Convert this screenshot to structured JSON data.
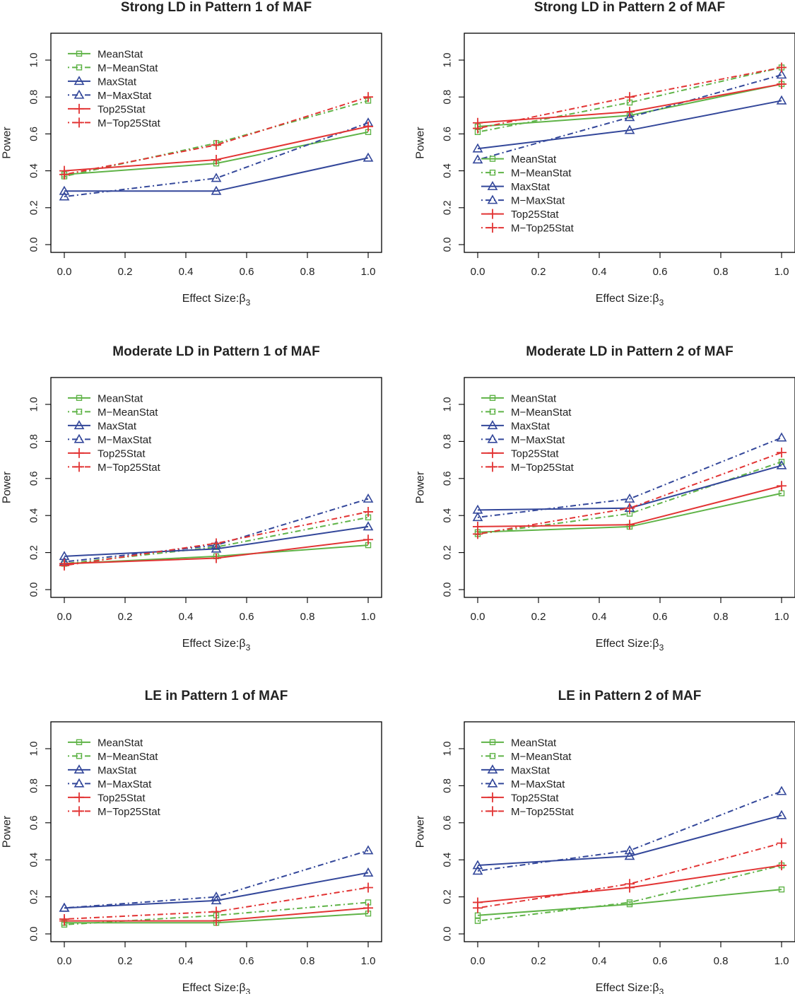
{
  "chart_data": [
    {
      "type": "line",
      "title": "Strong LD in Pattern 1 of MAF",
      "xlabel": "Effect Size:",
      "xlabel_symbol": "β",
      "xlabel_subscript": "3",
      "ylabel": "Power",
      "xlim": [
        0,
        1
      ],
      "ylim": [
        0,
        1
      ],
      "x_ticks": [
        "0.0",
        "0.2",
        "0.4",
        "0.6",
        "0.8",
        "1.0"
      ],
      "y_ticks": [
        "0.0",
        "0.2",
        "0.4",
        "0.6",
        "0.8",
        "1.0"
      ],
      "legend_position": "top-left",
      "x": [
        0,
        0.5,
        1
      ],
      "series": [
        {
          "name": "MeanStat",
          "values": [
            0.38,
            0.44,
            0.61
          ]
        },
        {
          "name": "M−MeanStat",
          "values": [
            0.37,
            0.55,
            0.78
          ]
        },
        {
          "name": "MaxStat",
          "values": [
            0.29,
            0.29,
            0.47
          ]
        },
        {
          "name": "M−MaxStat",
          "values": [
            0.26,
            0.36,
            0.66
          ]
        },
        {
          "name": "Top25Stat",
          "values": [
            0.4,
            0.46,
            0.64
          ]
        },
        {
          "name": "M−Top25Stat",
          "values": [
            0.38,
            0.54,
            0.8
          ]
        }
      ]
    },
    {
      "type": "line",
      "title": "Strong LD in Pattern 2 of MAF",
      "xlabel": "Effect Size:",
      "xlabel_symbol": "β",
      "xlabel_subscript": "3",
      "ylabel": "Power",
      "xlim": [
        0,
        1
      ],
      "ylim": [
        0,
        1
      ],
      "x_ticks": [
        "0.0",
        "0.2",
        "0.4",
        "0.6",
        "0.8",
        "1.0"
      ],
      "y_ticks": [
        "0.0",
        "0.2",
        "0.4",
        "0.6",
        "0.8",
        "1.0"
      ],
      "legend_position": "bottom-left",
      "x": [
        0,
        0.5,
        1
      ],
      "series": [
        {
          "name": "MeanStat",
          "values": [
            0.64,
            0.7,
            0.87
          ]
        },
        {
          "name": "M−MeanStat",
          "values": [
            0.61,
            0.77,
            0.96
          ]
        },
        {
          "name": "MaxStat",
          "values": [
            0.52,
            0.62,
            0.78
          ]
        },
        {
          "name": "M−MaxStat",
          "values": [
            0.46,
            0.69,
            0.92
          ]
        },
        {
          "name": "Top25Stat",
          "values": [
            0.66,
            0.72,
            0.87
          ]
        },
        {
          "name": "M−Top25Stat",
          "values": [
            0.63,
            0.8,
            0.96
          ]
        }
      ]
    },
    {
      "type": "line",
      "title": "Moderate LD in Pattern 1 of MAF",
      "xlabel": "Effect Size:",
      "xlabel_symbol": "β",
      "xlabel_subscript": "3",
      "ylabel": "Power",
      "xlim": [
        0,
        1
      ],
      "ylim": [
        0,
        1
      ],
      "x_ticks": [
        "0.0",
        "0.2",
        "0.4",
        "0.6",
        "0.8",
        "1.0"
      ],
      "y_ticks": [
        "0.0",
        "0.2",
        "0.4",
        "0.6",
        "0.8",
        "1.0"
      ],
      "legend_position": "top-left",
      "x": [
        0,
        0.5,
        1
      ],
      "series": [
        {
          "name": "MeanStat",
          "values": [
            0.14,
            0.18,
            0.24
          ]
        },
        {
          "name": "M−MeanStat",
          "values": [
            0.14,
            0.23,
            0.39
          ]
        },
        {
          "name": "MaxStat",
          "values": [
            0.18,
            0.22,
            0.34
          ]
        },
        {
          "name": "M−MaxStat",
          "values": [
            0.15,
            0.24,
            0.49
          ]
        },
        {
          "name": "Top25Stat",
          "values": [
            0.14,
            0.17,
            0.27
          ]
        },
        {
          "name": "M−Top25Stat",
          "values": [
            0.13,
            0.25,
            0.42
          ]
        }
      ]
    },
    {
      "type": "line",
      "title": "Moderate LD in Pattern 2 of MAF",
      "xlabel": "Effect Size:",
      "xlabel_symbol": "β",
      "xlabel_subscript": "3",
      "ylabel": "Power",
      "xlim": [
        0,
        1
      ],
      "ylim": [
        0,
        1
      ],
      "x_ticks": [
        "0.0",
        "0.2",
        "0.4",
        "0.6",
        "0.8",
        "1.0"
      ],
      "y_ticks": [
        "0.0",
        "0.2",
        "0.4",
        "0.6",
        "0.8",
        "1.0"
      ],
      "legend_position": "top-left",
      "x": [
        0,
        0.5,
        1
      ],
      "series": [
        {
          "name": "MeanStat",
          "values": [
            0.31,
            0.34,
            0.52
          ]
        },
        {
          "name": "M−MeanStat",
          "values": [
            0.3,
            0.41,
            0.69
          ]
        },
        {
          "name": "MaxStat",
          "values": [
            0.43,
            0.44,
            0.67
          ]
        },
        {
          "name": "M−MaxStat",
          "values": [
            0.39,
            0.49,
            0.82
          ]
        },
        {
          "name": "Top25Stat",
          "values": [
            0.34,
            0.35,
            0.56
          ]
        },
        {
          "name": "M−Top25Stat",
          "values": [
            0.3,
            0.44,
            0.74
          ]
        }
      ]
    },
    {
      "type": "line",
      "title": "LE in Pattern 1 of MAF",
      "xlabel": "Effect Size:",
      "xlabel_symbol": "β",
      "xlabel_subscript": "3",
      "ylabel": "Power",
      "xlim": [
        0,
        1
      ],
      "ylim": [
        0,
        1
      ],
      "x_ticks": [
        "0.0",
        "0.2",
        "0.4",
        "0.6",
        "0.8",
        "1.0"
      ],
      "y_ticks": [
        "0.0",
        "0.2",
        "0.4",
        "0.6",
        "0.8",
        "1.0"
      ],
      "legend_position": "top-left",
      "x": [
        0,
        0.5,
        1
      ],
      "series": [
        {
          "name": "MeanStat",
          "values": [
            0.06,
            0.06,
            0.11
          ]
        },
        {
          "name": "M−MeanStat",
          "values": [
            0.05,
            0.1,
            0.17
          ]
        },
        {
          "name": "MaxStat",
          "values": [
            0.14,
            0.18,
            0.33
          ]
        },
        {
          "name": "M−MaxStat",
          "values": [
            0.14,
            0.2,
            0.45
          ]
        },
        {
          "name": "Top25Stat",
          "values": [
            0.07,
            0.07,
            0.14
          ]
        },
        {
          "name": "M−Top25Stat",
          "values": [
            0.08,
            0.12,
            0.25
          ]
        }
      ]
    },
    {
      "type": "line",
      "title": "LE in Pattern 2 of MAF",
      "xlabel": "Effect Size:",
      "xlabel_symbol": "β",
      "xlabel_subscript": "3",
      "ylabel": "Power",
      "xlim": [
        0,
        1
      ],
      "ylim": [
        0,
        1
      ],
      "x_ticks": [
        "0.0",
        "0.2",
        "0.4",
        "0.6",
        "0.8",
        "1.0"
      ],
      "y_ticks": [
        "0.0",
        "0.2",
        "0.4",
        "0.6",
        "0.8",
        "1.0"
      ],
      "legend_position": "top-left",
      "x": [
        0,
        0.5,
        1
      ],
      "series": [
        {
          "name": "MeanStat",
          "values": [
            0.1,
            0.16,
            0.24
          ]
        },
        {
          "name": "M−MeanStat",
          "values": [
            0.07,
            0.17,
            0.37
          ]
        },
        {
          "name": "MaxStat",
          "values": [
            0.37,
            0.42,
            0.64
          ]
        },
        {
          "name": "M−MaxStat",
          "values": [
            0.34,
            0.45,
            0.77
          ]
        },
        {
          "name": "Top25Stat",
          "values": [
            0.17,
            0.25,
            0.37
          ]
        },
        {
          "name": "M−Top25Stat",
          "values": [
            0.14,
            0.27,
            0.49
          ]
        }
      ]
    }
  ],
  "series_style": [
    {
      "color": "#5fb347",
      "dash": "solid",
      "marker": "square"
    },
    {
      "color": "#5fb347",
      "dash": "dotdash",
      "marker": "square"
    },
    {
      "color": "#33479a",
      "dash": "solid",
      "marker": "triangle"
    },
    {
      "color": "#33479a",
      "dash": "dotdash",
      "marker": "triangle"
    },
    {
      "color": "#e23434",
      "dash": "solid",
      "marker": "plus"
    },
    {
      "color": "#e23434",
      "dash": "dotdash",
      "marker": "plus"
    }
  ]
}
